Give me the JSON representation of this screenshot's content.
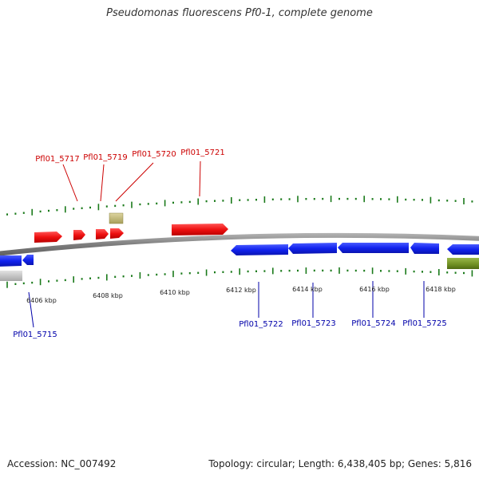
{
  "title": "Pseudomonas fluorescens Pf0-1, complete genome",
  "footer": {
    "accession": "Accession: NC_007492",
    "stats": "Topology: circular; Length: 6,438,405 bp; Genes: 5,816"
  },
  "colors": {
    "forward_gene": "#ee1111",
    "reverse_gene": "#1122ee",
    "tick": "#1a7a1a",
    "backbone": "#8a8a8a",
    "olive_feature": "#7a9a2a",
    "tan_feature": "#c8c080",
    "grey_feature": "#c8c8c8",
    "label_forward": "#cc0000",
    "label_reverse": "#0000aa"
  },
  "scale_labels": [
    "6406 kbp",
    "6408 kbp",
    "6410 kbp",
    "6412 kbp",
    "6414 kbp",
    "6416 kbp",
    "6418 kbp"
  ],
  "genes_top": [
    {
      "label": "Pfl01_5717"
    },
    {
      "label": "Pfl01_5719"
    },
    {
      "label": "Pfl01_5720"
    },
    {
      "label": "Pfl01_5721"
    }
  ],
  "genes_bottom": [
    {
      "label": "Pfl01_5715"
    },
    {
      "label": "Pfl01_5722"
    },
    {
      "label": "Pfl01_5723"
    },
    {
      "label": "Pfl01_5724"
    },
    {
      "label": "Pfl01_5725"
    }
  ]
}
